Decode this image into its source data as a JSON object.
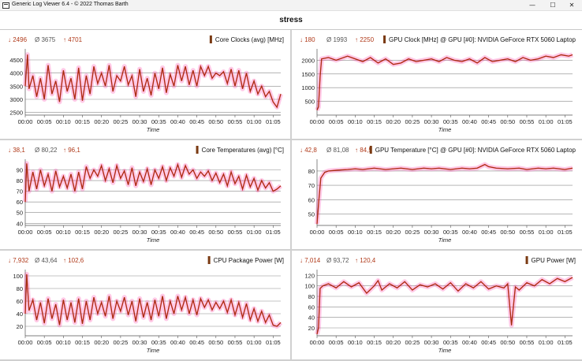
{
  "window": {
    "title": "Generic Log Viewer 6.4 - © 2022 Thomas Barth",
    "min_icon": "minimize-icon",
    "max_icon": "maximize-icon",
    "close_icon": "close-icon"
  },
  "header": {
    "title": "stress"
  },
  "colors": {
    "line": "#9a3310",
    "fill": "#e00000",
    "min": "#b03a1a",
    "avg": "#555555",
    "max": "#b03a1a",
    "band": "#ff2aa0",
    "legend": "#7a3a12"
  },
  "x_ticks": [
    "00:00",
    "00:05",
    "00:10",
    "00:15",
    "00:20",
    "00:25",
    "00:30",
    "00:35",
    "00:40",
    "00:45",
    "00:50",
    "00:55",
    "01:00",
    "01:05"
  ],
  "x_label": "Time",
  "chart_data": [
    {
      "type": "line",
      "title": "Core Clocks (avg) [MHz]",
      "stats": {
        "min": "↓ 2496",
        "avg": "Ø 3675",
        "max": "↑ 4701"
      },
      "ylim": [
        2400,
        4800
      ],
      "yticks": [
        2500,
        3000,
        3500,
        4000,
        4500
      ],
      "x_minutes": [
        0,
        0.6,
        1,
        2,
        3,
        4,
        5,
        6,
        7,
        8,
        9,
        10,
        11,
        12,
        13,
        14,
        15,
        16,
        17,
        18,
        19,
        20,
        21,
        22,
        23,
        24,
        25,
        26,
        27,
        28,
        29,
        30,
        31,
        32,
        33,
        34,
        35,
        36,
        37,
        38,
        39,
        40,
        41,
        42,
        43,
        44,
        45,
        46,
        47,
        48,
        49,
        50,
        51,
        52,
        53,
        54,
        55,
        56,
        57,
        58,
        59,
        60,
        61,
        62,
        63,
        64,
        65,
        66,
        67
      ],
      "y": [
        3500,
        4701,
        3400,
        3900,
        3100,
        3800,
        3000,
        4300,
        3200,
        3700,
        2900,
        4100,
        3300,
        3800,
        3000,
        4200,
        2950,
        3900,
        3200,
        4250,
        3600,
        4000,
        3500,
        4300,
        3300,
        3900,
        3700,
        4250,
        3550,
        3900,
        3100,
        4150,
        3300,
        3800,
        3150,
        4000,
        3400,
        4200,
        3250,
        3950,
        3500,
        4300,
        3700,
        4250,
        3550,
        4100,
        3500,
        4250,
        3900,
        4250,
        3800,
        4000,
        3900,
        4050,
        3600,
        4150,
        3500,
        4100,
        3400,
        4000,
        3300,
        3700,
        3200,
        3500,
        3100,
        3300,
        2900,
        2700,
        3200
      ]
    },
    {
      "type": "line",
      "title": "GPU Clock [MHz] @ GPU [#0]: NVIDIA GeForce RTX 5060 Laptop",
      "stats": {
        "min": "↓ 180",
        "avg": "Ø 1993",
        "max": "↑ 2250"
      },
      "ylim": [
        0,
        2300
      ],
      "yticks": [
        500,
        1000,
        1500,
        2000
      ],
      "x_minutes": [
        0,
        0.4,
        0.8,
        1.2,
        3,
        5,
        8,
        10,
        12,
        14,
        16,
        18,
        20,
        22,
        24,
        26,
        28,
        30,
        32,
        34,
        36,
        38,
        40,
        42,
        44,
        46,
        48,
        50,
        52,
        54,
        56,
        58,
        60,
        62,
        64,
        66,
        67
      ],
      "y": [
        180,
        300,
        1400,
        2050,
        2100,
        2000,
        2150,
        2050,
        1950,
        2100,
        1900,
        2050,
        1850,
        1900,
        2050,
        1950,
        2000,
        2050,
        1950,
        2100,
        2000,
        1950,
        2050,
        1900,
        2100,
        1950,
        2000,
        2050,
        1950,
        2100,
        2000,
        2050,
        2150,
        2100,
        2200,
        2150,
        2200
      ]
    },
    {
      "type": "line",
      "title": "Core Temperatures (avg) [°C]",
      "stats": {
        "min": "↓ 38,1",
        "avg": "Ø 80,22",
        "max": "↑ 96,1"
      },
      "ylim": [
        38,
        97
      ],
      "yticks": [
        40,
        50,
        60,
        70,
        80,
        90
      ],
      "x_minutes": [
        0,
        0.4,
        1,
        2,
        3,
        4,
        5,
        6,
        7,
        8,
        9,
        10,
        11,
        12,
        13,
        14,
        15,
        16,
        17,
        18,
        19,
        20,
        21,
        22,
        23,
        24,
        25,
        26,
        27,
        28,
        29,
        30,
        31,
        32,
        33,
        34,
        35,
        36,
        37,
        38,
        39,
        40,
        41,
        42,
        43,
        44,
        45,
        46,
        47,
        48,
        49,
        50,
        51,
        52,
        53,
        54,
        55,
        56,
        57,
        58,
        59,
        60,
        61,
        62,
        63,
        64,
        65,
        66,
        67
      ],
      "y": [
        60,
        96,
        70,
        88,
        72,
        90,
        75,
        86,
        70,
        89,
        74,
        84,
        73,
        86,
        70,
        88,
        72,
        93,
        82,
        90,
        84,
        94,
        80,
        91,
        78,
        94,
        82,
        89,
        76,
        92,
        75,
        88,
        79,
        91,
        76,
        90,
        82,
        93,
        80,
        92,
        84,
        95,
        83,
        94,
        86,
        90,
        82,
        88,
        84,
        89,
        80,
        87,
        78,
        86,
        75,
        88,
        77,
        84,
        72,
        85,
        74,
        82,
        71,
        80,
        73,
        78,
        70,
        72,
        75
      ]
    },
    {
      "type": "line",
      "title": "GPU Temperature [°C] @ GPU [#0]: NVIDIA GeForce RTX 5060 Laptop",
      "stats": {
        "min": "↓ 42,8",
        "avg": "Ø 81,08",
        "max": "↑ 84,5"
      },
      "ylim": [
        42,
        86
      ],
      "yticks": [
        50,
        60,
        70,
        80
      ],
      "x_minutes": [
        0,
        0.5,
        1,
        2,
        3,
        5,
        8,
        10,
        12,
        15,
        18,
        20,
        22,
        25,
        28,
        30,
        32,
        35,
        38,
        40,
        42,
        44,
        45,
        47,
        50,
        53,
        55,
        58,
        60,
        62,
        65,
        67
      ],
      "y": [
        43,
        60,
        75,
        79,
        80,
        80.5,
        81,
        81.5,
        81,
        82,
        81,
        81.5,
        82,
        81,
        82,
        81.5,
        82,
        81,
        82,
        81.5,
        82,
        84.5,
        83,
        82,
        81.5,
        82,
        81,
        82,
        81.5,
        82,
        81,
        82
      ]
    },
    {
      "type": "line",
      "title": "CPU Package Power [W]",
      "stats": {
        "min": "↓ 7,932",
        "avg": "Ø 43,64",
        "max": "↑ 102,6"
      },
      "ylim": [
        5,
        105
      ],
      "yticks": [
        20,
        40,
        60,
        80,
        100
      ],
      "x_minutes": [
        0,
        0.4,
        1,
        2,
        3,
        4,
        5,
        6,
        7,
        8,
        9,
        10,
        11,
        12,
        13,
        14,
        15,
        16,
        17,
        18,
        19,
        20,
        21,
        22,
        23,
        24,
        25,
        26,
        27,
        28,
        29,
        30,
        31,
        32,
        33,
        34,
        35,
        36,
        37,
        38,
        39,
        40,
        41,
        42,
        43,
        44,
        45,
        46,
        47,
        48,
        49,
        50,
        51,
        52,
        53,
        54,
        55,
        56,
        57,
        58,
        59,
        60,
        61,
        62,
        63,
        64,
        65,
        66,
        67
      ],
      "y": [
        40,
        102.6,
        45,
        62,
        30,
        58,
        25,
        64,
        32,
        55,
        22,
        62,
        30,
        58,
        26,
        64,
        24,
        60,
        30,
        66,
        40,
        58,
        36,
        68,
        32,
        60,
        44,
        66,
        38,
        60,
        28,
        64,
        34,
        58,
        30,
        62,
        36,
        68,
        32,
        60,
        40,
        68,
        46,
        66,
        40,
        62,
        38,
        64,
        50,
        62,
        46,
        58,
        48,
        60,
        42,
        62,
        38,
        58,
        34,
        56,
        30,
        48,
        28,
        44,
        26,
        38,
        22,
        20,
        26
      ]
    },
    {
      "type": "line",
      "title": "GPU Power [W]",
      "stats": {
        "min": "↓ 7,014",
        "avg": "Ø 93,72",
        "max": "↑ 120,4"
      },
      "ylim": [
        5,
        125
      ],
      "yticks": [
        20,
        40,
        60,
        80,
        100,
        120
      ],
      "x_minutes": [
        0,
        0.4,
        0.8,
        1.5,
        3,
        5,
        7,
        9,
        11,
        13,
        15,
        16,
        17,
        19,
        21,
        23,
        25,
        27,
        29,
        31,
        33,
        35,
        37,
        39,
        41,
        43,
        45,
        47,
        49,
        50,
        51,
        52,
        53,
        55,
        57,
        59,
        61,
        63,
        65,
        67
      ],
      "y": [
        8,
        20,
        95,
        100,
        104,
        96,
        108,
        98,
        106,
        86,
        100,
        110,
        92,
        104,
        96,
        108,
        92,
        102,
        98,
        104,
        94,
        106,
        90,
        104,
        96,
        108,
        94,
        100,
        96,
        104,
        25,
        98,
        92,
        106,
        100,
        112,
        104,
        114,
        108,
        116
      ]
    }
  ]
}
